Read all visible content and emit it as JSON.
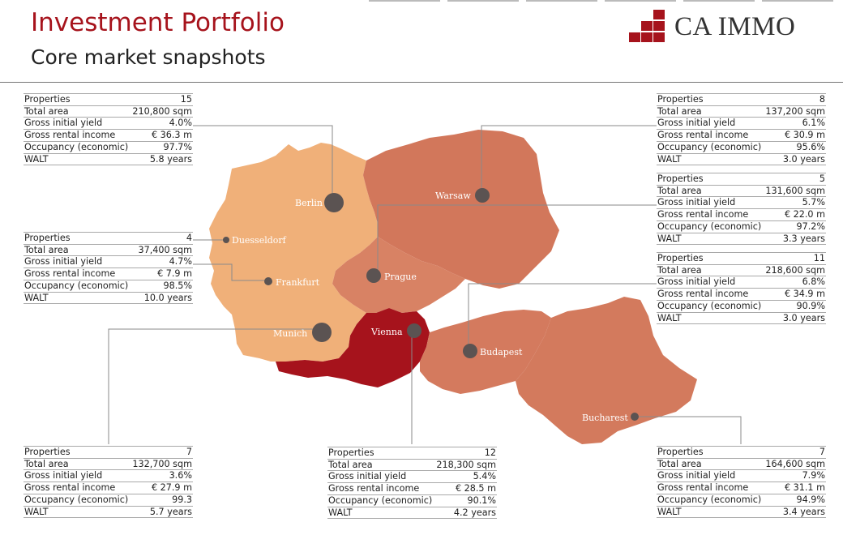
{
  "header": {
    "title": "Investment Portfolio",
    "subtitle": "Core market snapshots"
  },
  "logo": {
    "text": "CA IMMO",
    "color": "#a6131c"
  },
  "colors": {
    "germany": "#f0b079",
    "poland": "#d2775b",
    "austria": "#a6131c",
    "czech": "#d88264",
    "hungary": "#d47a5e",
    "romania": "#d37a5d",
    "marker": "#5b5352"
  },
  "cities": {
    "berlin": "Berlin",
    "warsaw": "Warsaw",
    "duesseldorf": "Duesseldorf",
    "frankfurt": "Frankfurt",
    "prague": "Prague",
    "munich": "Munich",
    "vienna": "Vienna",
    "budapest": "Budapest",
    "bucharest": "Bucharest"
  },
  "panels": {
    "berlin": {
      "properties": "15",
      "total_area": "210,800 sqm",
      "yield": "4.0%",
      "income": "€ 36.3 m",
      "occupancy": "97.7%",
      "walt": "5.8 years"
    },
    "duesseldorf_frankfurt": {
      "properties": "4",
      "total_area": "37,400 sqm",
      "yield": "4.7%",
      "income": "€ 7.9 m",
      "occupancy": "98.5%",
      "walt": "10.0 years"
    },
    "munich": {
      "properties": "7",
      "total_area": "132,700 sqm",
      "yield": "3.6%",
      "income": "€ 27.9 m",
      "occupancy": "99.3",
      "walt": "5.7 years"
    },
    "vienna": {
      "properties": "12",
      "total_area": "218,300 sqm",
      "yield": "5.4%",
      "income": "€ 28.5 m",
      "occupancy": "90.1%",
      "walt": "4.2 years"
    },
    "warsaw": {
      "properties": "8",
      "total_area": "137,200 sqm",
      "yield": "6.1%",
      "income": "€ 30.9 m",
      "occupancy": "95.6%",
      "walt": "3.0 years"
    },
    "prague": {
      "properties": "5",
      "total_area": "131,600 sqm",
      "yield": "5.7%",
      "income": "€ 22.0 m",
      "occupancy": "97.2%",
      "walt": "3.3 years"
    },
    "budapest": {
      "properties": "11",
      "total_area": "218,600 sqm",
      "yield": "6.8%",
      "income": "€ 34.9 m",
      "occupancy": "90.9%",
      "walt": "3.0 years"
    },
    "bucharest": {
      "properties": "7",
      "total_area": "164,600 sqm",
      "yield": "7.9%",
      "income": "€ 31.1 m",
      "occupancy": "94.9%",
      "walt": "3.4 years"
    }
  },
  "labels": {
    "properties": "Properties",
    "total_area": "Total area",
    "yield": "Gross initial yield",
    "income": "Gross rental income",
    "occupancy": "Occupancy (economic)",
    "walt": "WALT"
  }
}
